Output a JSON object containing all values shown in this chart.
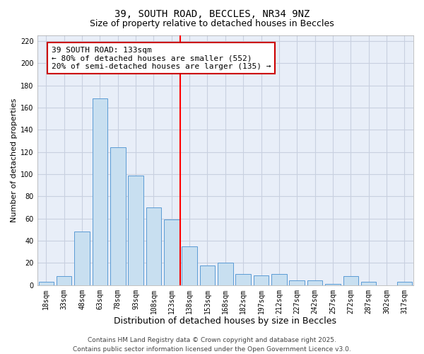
{
  "title": "39, SOUTH ROAD, BECCLES, NR34 9NZ",
  "subtitle": "Size of property relative to detached houses in Beccles",
  "xlabel": "Distribution of detached houses by size in Beccles",
  "ylabel": "Number of detached properties",
  "bar_labels": [
    "18sqm",
    "33sqm",
    "48sqm",
    "63sqm",
    "78sqm",
    "93sqm",
    "108sqm",
    "123sqm",
    "138sqm",
    "153sqm",
    "168sqm",
    "182sqm",
    "197sqm",
    "212sqm",
    "227sqm",
    "242sqm",
    "257sqm",
    "272sqm",
    "287sqm",
    "302sqm",
    "317sqm"
  ],
  "bar_values": [
    3,
    8,
    48,
    168,
    124,
    99,
    70,
    59,
    35,
    18,
    20,
    10,
    9,
    10,
    4,
    4,
    1,
    8,
    3,
    0,
    3
  ],
  "bar_color": "#c8dff0",
  "bar_edge_color": "#5b9bd5",
  "vline_x": 7.5,
  "vline_color": "red",
  "annotation_line1": "39 SOUTH ROAD: 133sqm",
  "annotation_line2": "← 80% of detached houses are smaller (552)",
  "annotation_line3": "20% of semi-detached houses are larger (135) →",
  "annotation_box_color": "white",
  "annotation_box_edge": "#cc0000",
  "ylim": [
    0,
    225
  ],
  "yticks": [
    0,
    20,
    40,
    60,
    80,
    100,
    120,
    140,
    160,
    180,
    200,
    220
  ],
  "bg_color": "#e8eef8",
  "grid_color": "#c8d0e0",
  "footer_line1": "Contains HM Land Registry data © Crown copyright and database right 2025.",
  "footer_line2": "Contains public sector information licensed under the Open Government Licence v3.0.",
  "title_fontsize": 10,
  "subtitle_fontsize": 9,
  "xlabel_fontsize": 9,
  "ylabel_fontsize": 8,
  "tick_fontsize": 7,
  "annotation_fontsize": 8,
  "footer_fontsize": 6.5
}
